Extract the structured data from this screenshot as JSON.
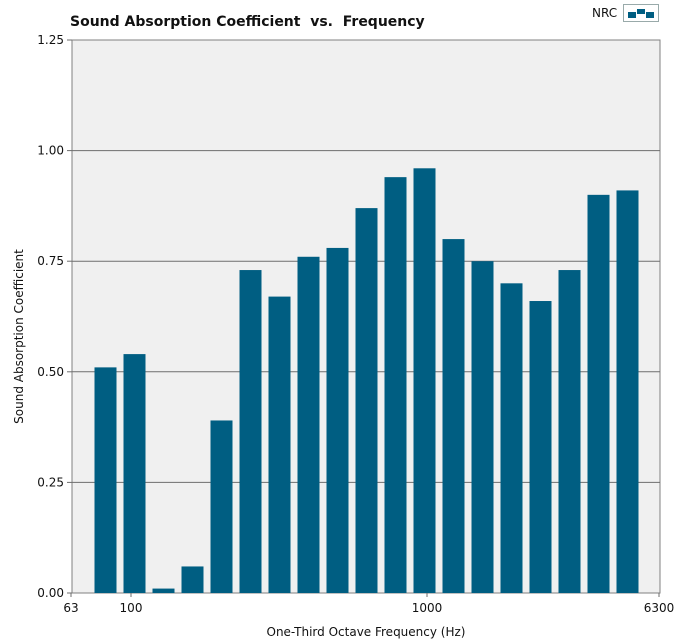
{
  "chart_data": {
    "type": "bar",
    "title": "Sound Absorption Coefficient  vs.  Frequency",
    "xlabel": "One-Third Octave Frequency (Hz)",
    "ylabel": "Sound Absorption Coefficient",
    "ylim": [
      0,
      1.25
    ],
    "y_ticks": [
      "0.00",
      "0.25",
      "0.50",
      "0.75",
      "1.00",
      "1.25"
    ],
    "x_tick_labels": [
      "63",
      "100",
      "1000",
      "6300"
    ],
    "grid": "horizontal",
    "legend": {
      "label": "NRC",
      "placement": "top-right"
    },
    "bar_color": "#005e82",
    "categories": [
      "80",
      "100",
      "125",
      "160",
      "200",
      "250",
      "315",
      "400",
      "500",
      "630",
      "800",
      "1000",
      "1250",
      "1600",
      "2000",
      "2500",
      "3150",
      "4000",
      "5000"
    ],
    "values": [
      0.51,
      0.54,
      0.01,
      0.06,
      0.39,
      0.73,
      0.67,
      0.76,
      0.78,
      0.87,
      0.94,
      0.96,
      0.8,
      0.75,
      0.7,
      0.66,
      0.73,
      0.9,
      0.91
    ]
  }
}
